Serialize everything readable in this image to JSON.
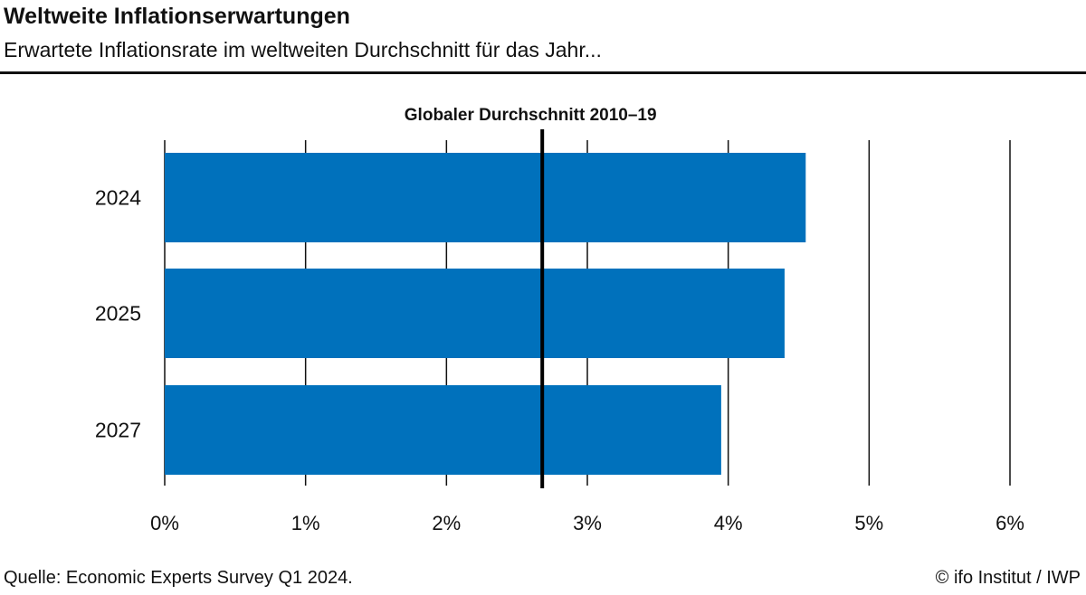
{
  "header": {
    "title": "Weltweite Inflationserwartungen",
    "subtitle": "Erwartete Inflationsrate im weltweiten Durchschnitt für das Jahr..."
  },
  "chart_data": {
    "type": "bar",
    "orientation": "horizontal",
    "categories": [
      "2024",
      "2025",
      "2027"
    ],
    "values": [
      4.55,
      4.4,
      3.95
    ],
    "xlim": [
      0,
      6
    ],
    "x_ticks": [
      0,
      1,
      2,
      3,
      4,
      5,
      6
    ],
    "tick_labels": [
      "0%",
      "1%",
      "2%",
      "3%",
      "4%",
      "5%",
      "6%"
    ],
    "grid": true,
    "bar_color": "#0071BC",
    "reference_line": {
      "label": "Globaler Durchschnitt 2010–19",
      "value": 2.68
    }
  },
  "footer": {
    "source": "Quelle: Economic Experts Survey Q1 2024.",
    "copyright": "© ifo Institut / IWP"
  }
}
